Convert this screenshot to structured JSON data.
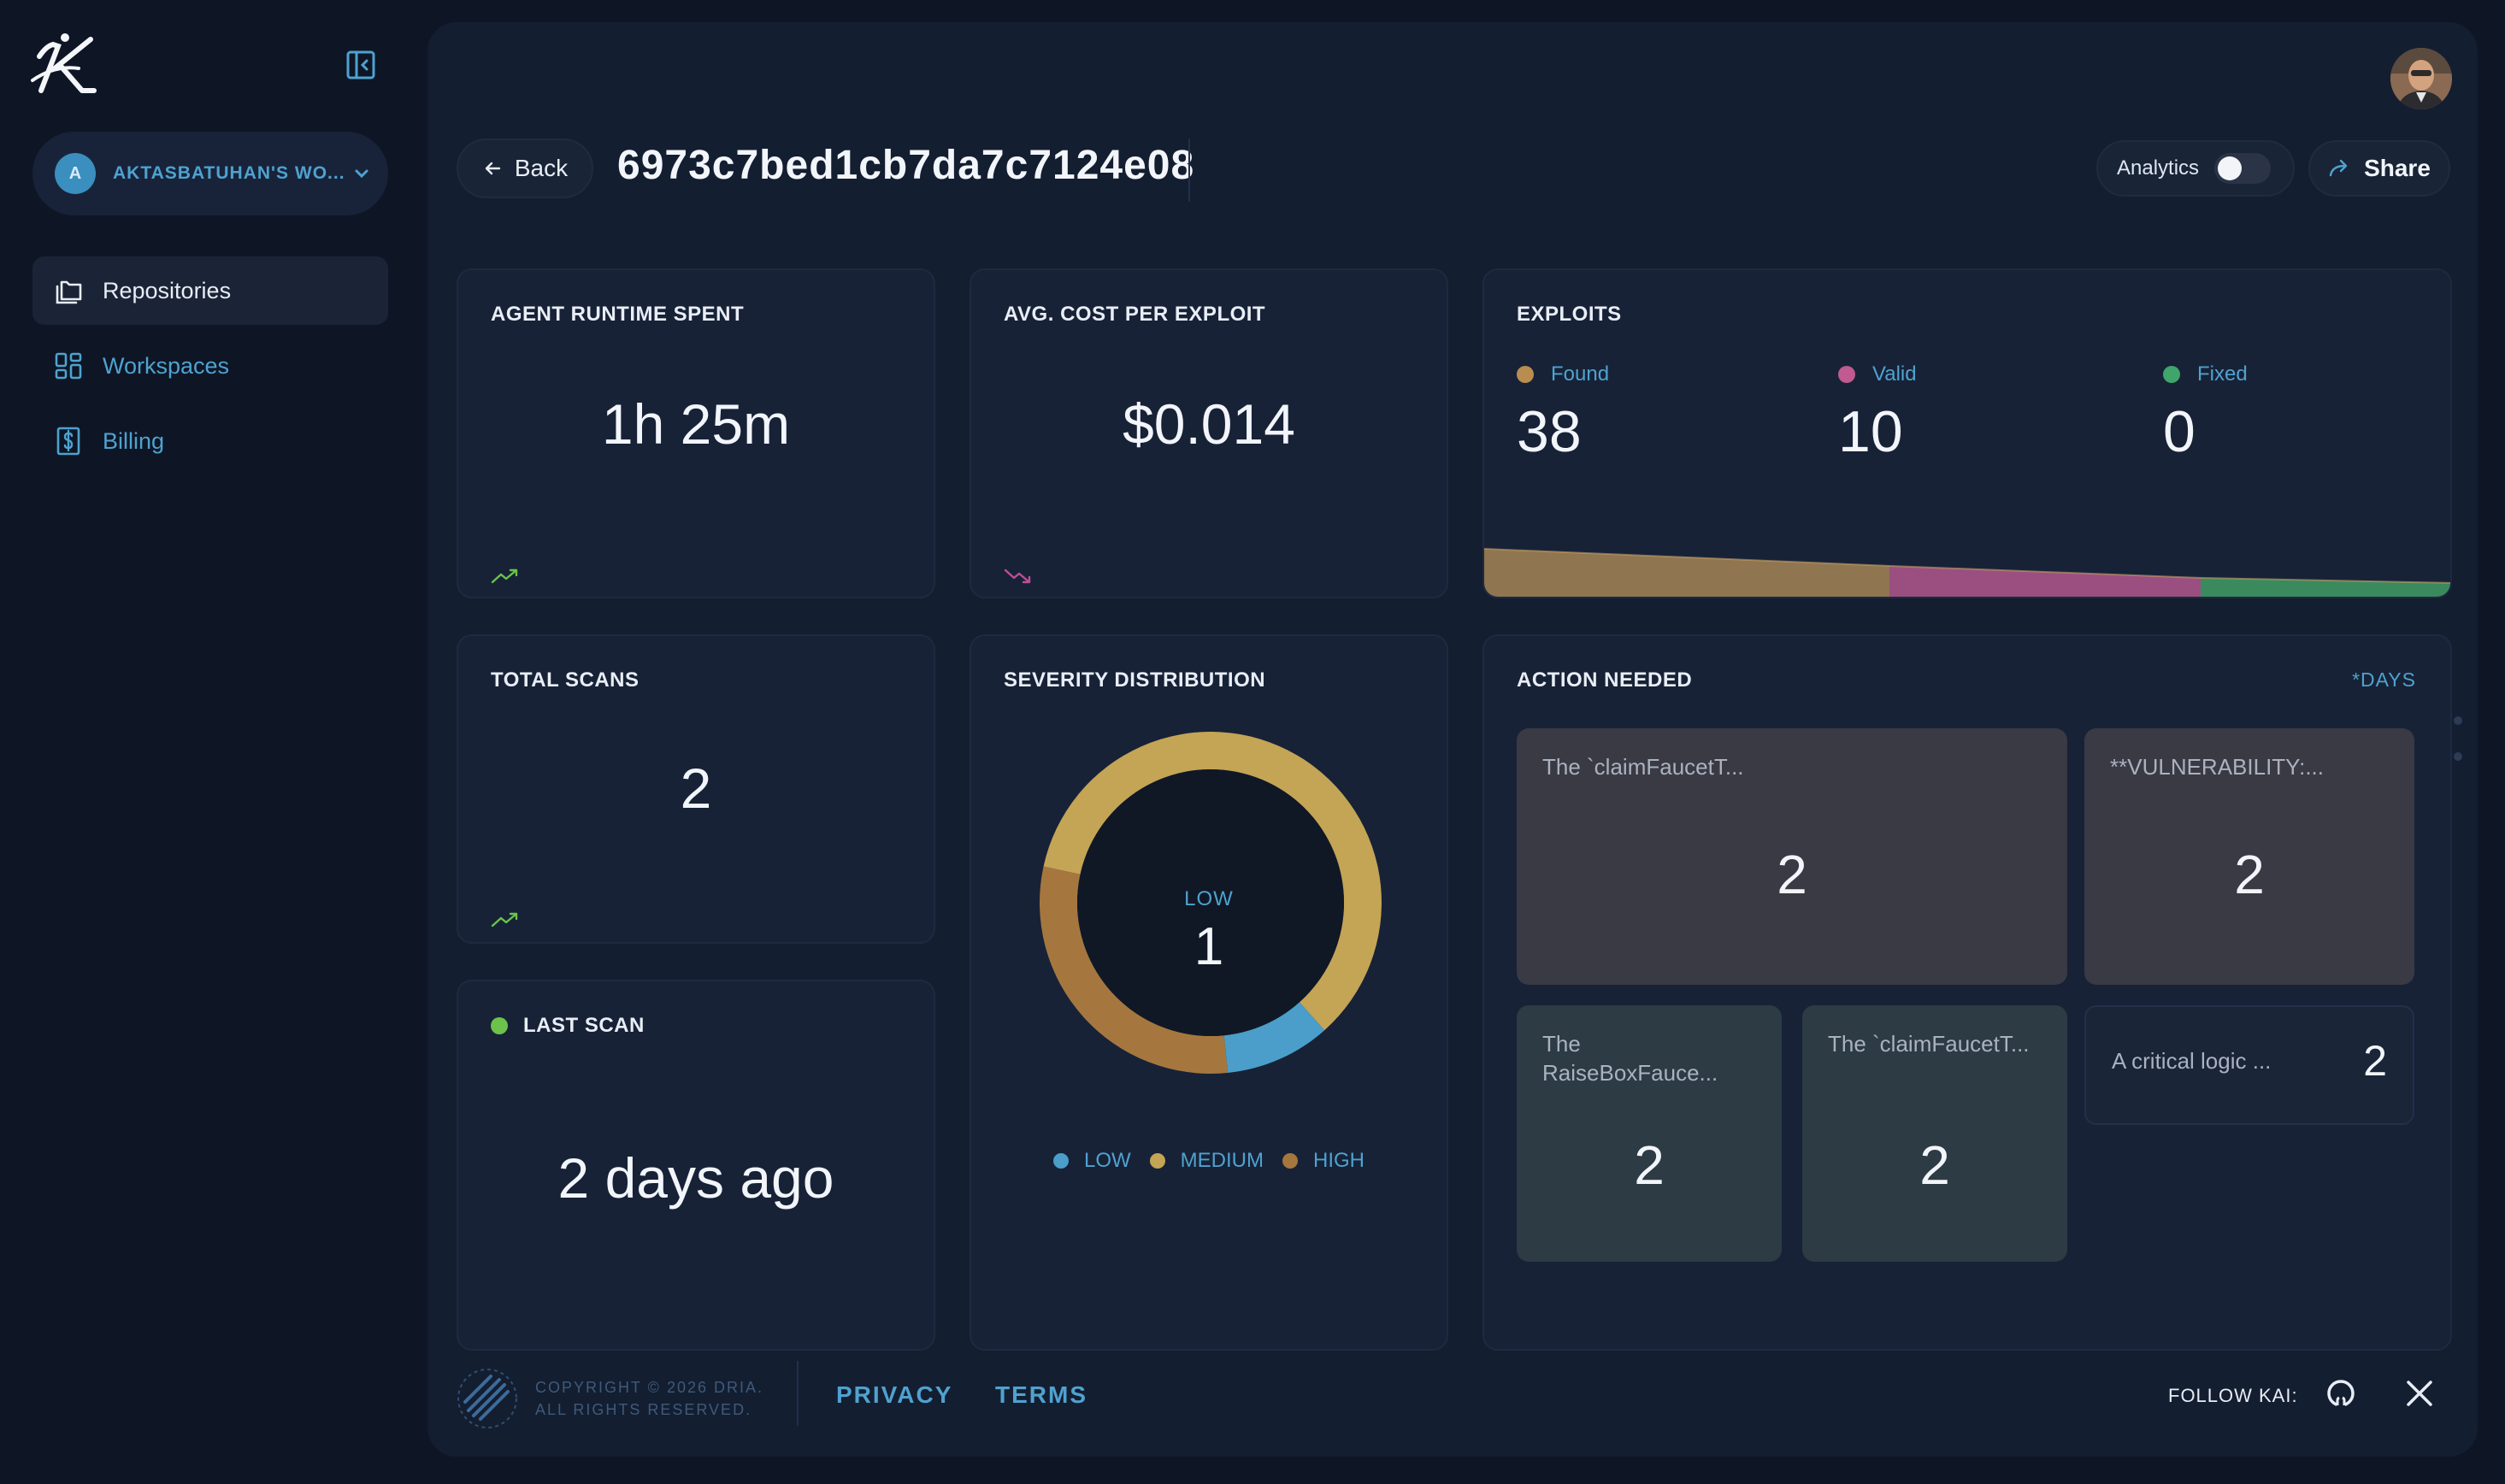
{
  "sidebar": {
    "workspace": {
      "initial": "A",
      "name": "AKTASBATUHAN'S WO..."
    },
    "items": [
      {
        "label": "Repositories",
        "icon": "folders-icon",
        "active": true
      },
      {
        "label": "Workspaces",
        "icon": "grid-icon",
        "active": false
      },
      {
        "label": "Billing",
        "icon": "dollar-icon",
        "active": false
      }
    ]
  },
  "header": {
    "back_label": "Back",
    "title": "6973c7bed1cb7da7c7124e08",
    "analytics_label": "Analytics",
    "analytics_enabled": false,
    "share_label": "Share"
  },
  "cards": {
    "runtime": {
      "label": "AGENT RUNTIME SPENT",
      "value": "1h 25m",
      "trend": "up"
    },
    "cost": {
      "label": "AVG. COST PER EXPLOIT",
      "value": "$0.014",
      "trend": "down"
    },
    "exploits": {
      "label": "EXPLOITS",
      "stats": [
        {
          "label": "Found",
          "value": "38",
          "color": "#b98d4f"
        },
        {
          "label": "Valid",
          "value": "10",
          "color": "#c05a8f"
        },
        {
          "label": "Fixed",
          "value": "0",
          "color": "#3fa56a"
        }
      ]
    },
    "scans": {
      "label": "TOTAL SCANS",
      "value": "2",
      "trend": "up"
    },
    "last_scan": {
      "label": "LAST SCAN",
      "value": "2 days ago",
      "status_color": "#6cc24a"
    },
    "severity": {
      "label": "SEVERITY DISTRIBUTION",
      "center_label": "LOW",
      "center_value": "1",
      "legend": [
        {
          "label": "LOW",
          "color": "#4a9ec9"
        },
        {
          "label": "MEDIUM",
          "color": "#c4a455"
        },
        {
          "label": "HIGH",
          "color": "#a5773f"
        }
      ]
    },
    "action": {
      "label": "ACTION NEEDED",
      "link": "*DAYS",
      "tiles": [
        {
          "label": "The `claimFaucetT...",
          "value": "2"
        },
        {
          "label": "**VULNERABILITY:...",
          "value": "2"
        },
        {
          "label": "The RaiseBoxFauce...",
          "value": "2"
        },
        {
          "label": "The `claimFaucetT...",
          "value": "2"
        },
        {
          "label": "A critical logic ...",
          "value": "2"
        }
      ]
    }
  },
  "footer": {
    "copyright_line1": "COPYRIGHT © 2026 DRIA.",
    "copyright_line2": "ALL RIGHTS RESERVED.",
    "privacy": "PRIVACY",
    "terms": "TERMS",
    "follow": "FOLLOW KAI:"
  },
  "chart_data": {
    "type": "pie",
    "title": "SEVERITY DISTRIBUTION",
    "categories": [
      "LOW",
      "MEDIUM",
      "HIGH"
    ],
    "values": [
      1,
      6,
      3
    ]
  }
}
